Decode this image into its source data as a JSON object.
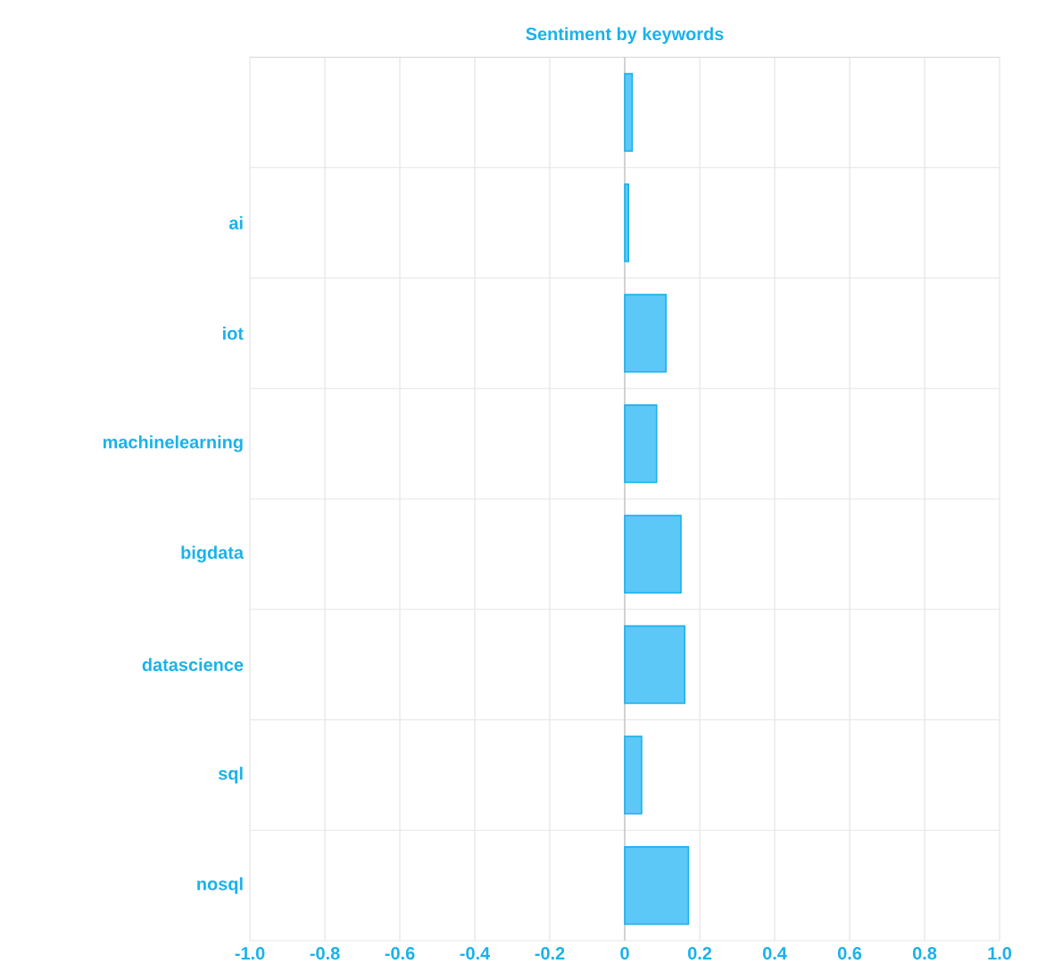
{
  "chart_data": {
    "type": "bar",
    "orientation": "horizontal",
    "title": "Sentiment by keywords",
    "categories": [
      null,
      "ai",
      "iot",
      "machinelearning",
      "bigdata",
      "datascience",
      "sql",
      "nosql"
    ],
    "values": [
      0.02,
      0.01,
      0.11,
      0.085,
      0.15,
      0.16,
      0.045,
      0.17
    ],
    "color": "#5cc8f8",
    "xlim": [
      -1.0,
      1.0
    ],
    "xticks": [
      {
        "value": -1.0,
        "label": "-1.0"
      },
      {
        "value": -0.8,
        "label": "-0.8"
      },
      {
        "value": -0.6,
        "label": "-0.6"
      },
      {
        "value": -0.4,
        "label": "-0.4"
      },
      {
        "value": -0.2,
        "label": "-0.2"
      },
      0,
      0.2,
      0.4,
      0.6,
      0.8,
      {
        "value": 1.0,
        "label": "1.0"
      }
    ],
    "grid": true
  }
}
